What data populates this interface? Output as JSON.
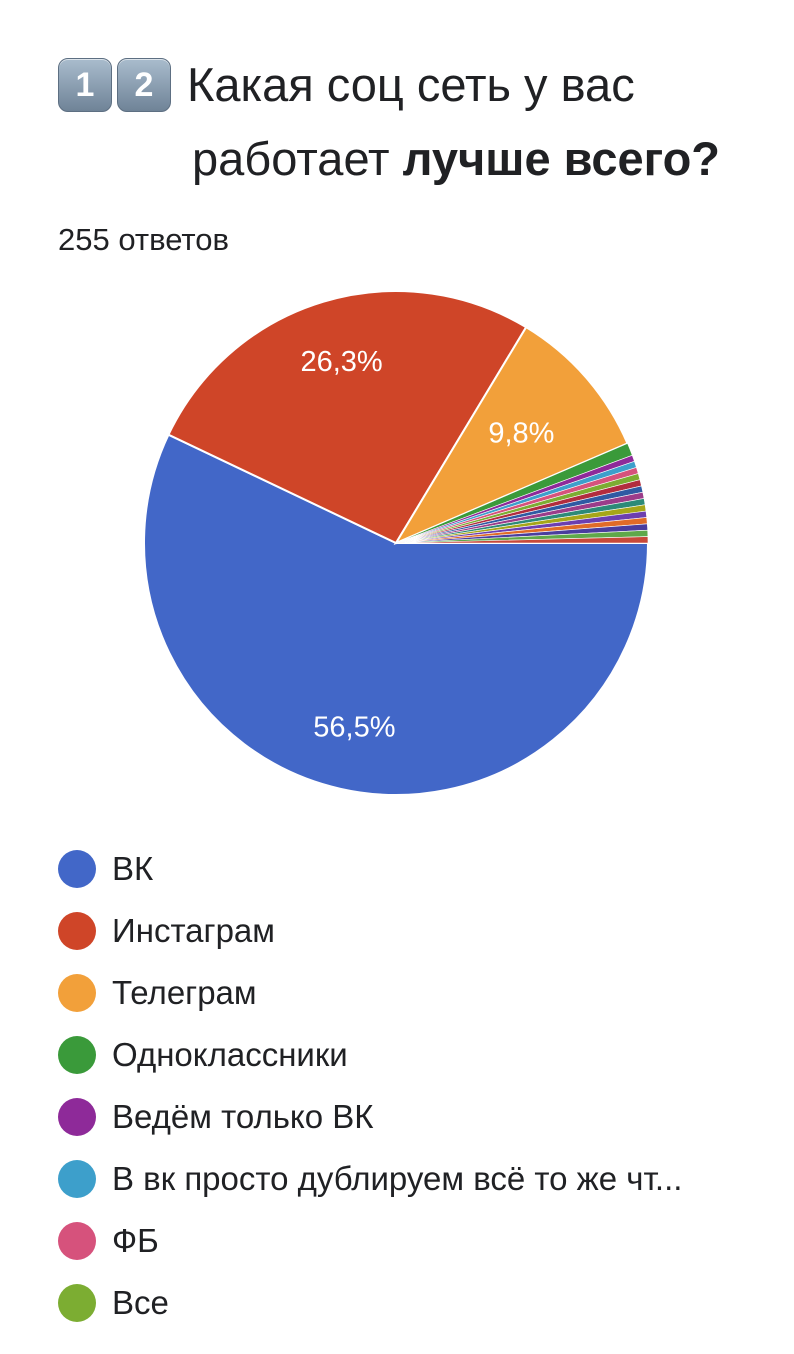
{
  "title": {
    "badges": [
      "1",
      "2"
    ],
    "line1": "Какая соц сеть у вас",
    "line2_normal": "работает ",
    "line2_bold": "лучше всего?"
  },
  "response_count": "255 ответов",
  "chart_data": {
    "type": "pie",
    "title": "Какая соц сеть у вас работает лучше всего?",
    "total_responses": 255,
    "slices": [
      {
        "label": "ВК",
        "value": 56.5,
        "color": "#4267c8",
        "data_label": "56,5%"
      },
      {
        "label": "Инстаграм",
        "value": 26.3,
        "color": "#cf4528",
        "data_label": "26,3%"
      },
      {
        "label": "Телеграм",
        "value": 9.8,
        "color": "#f2a03a",
        "data_label": "9,8%"
      },
      {
        "label": "Одноклассники",
        "value": 0.8,
        "color": "#3a9a3a",
        "data_label": ""
      },
      {
        "label": "Ведём только ВК",
        "value": 0.4,
        "color": "#8e2a99",
        "data_label": ""
      },
      {
        "label": "В вк просто дублируем всё то же чт...",
        "value": 0.4,
        "color": "#3d9fcb",
        "data_label": ""
      },
      {
        "label": "ФБ",
        "value": 0.4,
        "color": "#d6527c",
        "data_label": ""
      },
      {
        "label": "Все",
        "value": 0.4,
        "color": "#7cad32",
        "data_label": ""
      },
      {
        "label": "",
        "value": 0.4,
        "color": "#b22c3e",
        "data_label": ""
      },
      {
        "label": "",
        "value": 0.4,
        "color": "#2f5aa3",
        "data_label": ""
      },
      {
        "label": "",
        "value": 0.4,
        "color": "#9b3c8a",
        "data_label": ""
      },
      {
        "label": "",
        "value": 0.4,
        "color": "#2d8a78",
        "data_label": ""
      },
      {
        "label": "",
        "value": 0.4,
        "color": "#a6a619",
        "data_label": ""
      },
      {
        "label": "",
        "value": 0.4,
        "color": "#6c3fb0",
        "data_label": ""
      },
      {
        "label": "",
        "value": 0.4,
        "color": "#e06b28",
        "data_label": ""
      },
      {
        "label": "",
        "value": 0.4,
        "color": "#4a3d9e",
        "data_label": ""
      },
      {
        "label": "",
        "value": 0.4,
        "color": "#5fa84a",
        "data_label": ""
      },
      {
        "label": "",
        "value": 0.4,
        "color": "#c8493a",
        "data_label": ""
      }
    ],
    "legend": [
      "ВК",
      "Инстаграм",
      "Телеграм",
      "Одноклассники",
      "Ведём только ВК",
      "В вк просто дублируем всё то же чт...",
      "ФБ",
      "Все"
    ],
    "legend_position": "bottom"
  }
}
